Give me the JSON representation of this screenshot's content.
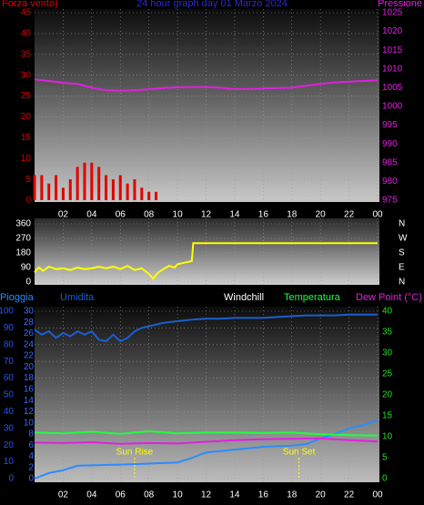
{
  "chart_data": [
    {
      "type": "combo",
      "title": "24 hour graph day  01 Marzo 2024",
      "title_color": "#2a2ad0",
      "ylabel": "Forza vento)",
      "y2label": "Pressione",
      "ycolor": "#e00000",
      "y2color": "#e020e0",
      "xlim": [
        0,
        24
      ],
      "xticks": [
        {
          "value": 2,
          "label": "02"
        },
        {
          "value": 4,
          "label": "04"
        },
        {
          "value": 6,
          "label": "06"
        },
        {
          "value": 8,
          "label": "08"
        },
        10,
        12,
        14,
        16,
        18,
        20,
        22,
        {
          "value": 24,
          "label": "00"
        }
      ],
      "ylim": [
        0,
        45
      ],
      "yticks": [
        0,
        5,
        10,
        15,
        20,
        25,
        30,
        35,
        40,
        45
      ],
      "y2lim": [
        975,
        1025
      ],
      "y2ticks": [
        975,
        980,
        985,
        990,
        995,
        1000,
        1005,
        1010,
        1015,
        1020,
        1025
      ],
      "grid": true,
      "series": [
        {
          "kind": "bar",
          "color": "#e00000",
          "x": [
            0,
            0.5,
            1,
            1.5,
            2,
            2.5,
            3,
            3.5,
            4,
            4.5,
            5,
            5.5,
            6,
            6.5,
            7,
            7.5,
            8,
            8.5,
            9
          ],
          "values": [
            6,
            6,
            4,
            6,
            3,
            5,
            8,
            9,
            9,
            8,
            6,
            5,
            6,
            4,
            5,
            3,
            2,
            2,
            0
          ]
        },
        {
          "kind": "line",
          "axis": "y2",
          "color": "#e020e0",
          "x": [
            0,
            1,
            2,
            3,
            4,
            5,
            6,
            7,
            8,
            9,
            10,
            11,
            12,
            13,
            14,
            15,
            16,
            17,
            18,
            19,
            20,
            21,
            22,
            23,
            24
          ],
          "values": [
            1007.2,
            1006.8,
            1006.3,
            1006,
            1005,
            1004.3,
            1004.2,
            1004.3,
            1004.6,
            1004.9,
            1005.1,
            1005.2,
            1005.2,
            1005,
            1004.6,
            1004.6,
            1004.8,
            1004.9,
            1005,
            1005.5,
            1006,
            1006.4,
            1006.6,
            1006.8,
            1007
          ]
        }
      ]
    },
    {
      "type": "line",
      "ycolor": "#ffffff",
      "y2color": "#ffffff",
      "xlim": [
        0,
        24
      ],
      "ylim": [
        0,
        360
      ],
      "yticks": [
        0,
        90,
        180,
        270,
        360
      ],
      "y2lim": [
        0,
        360
      ],
      "y2ticks": [
        {
          "value": 0,
          "label": "N"
        },
        {
          "value": 90,
          "label": "E"
        },
        {
          "value": 180,
          "label": "S"
        },
        {
          "value": 270,
          "label": "W"
        },
        {
          "value": 360,
          "label": "N"
        }
      ],
      "grid": true,
      "series": [
        {
          "kind": "line",
          "color": "#ffff00",
          "x": [
            0,
            0.3,
            0.6,
            1,
            1.5,
            2,
            2.5,
            3,
            3.5,
            4,
            4.5,
            5,
            5.5,
            6,
            6.5,
            7,
            7.5,
            8,
            8.3,
            8.6,
            9,
            9.4,
            9.8,
            10,
            10.5,
            11,
            11.1,
            24
          ],
          "values": [
            60,
            90,
            70,
            95,
            80,
            85,
            75,
            90,
            80,
            85,
            95,
            85,
            95,
            80,
            100,
            75,
            85,
            50,
            20,
            55,
            80,
            100,
            90,
            110,
            120,
            130,
            240,
            240
          ]
        }
      ]
    },
    {
      "type": "line",
      "labels": [
        "Windchill"
      ],
      "ycolor": "#2255ff",
      "y3color": "#3a6cff",
      "y2color": "#20e020",
      "xlim": [
        0,
        24
      ],
      "xticks": [
        {
          "value": 2,
          "label": "02"
        },
        {
          "value": 4,
          "label": "04"
        },
        {
          "value": 6,
          "label": "06"
        },
        {
          "value": 8,
          "label": "08"
        },
        10,
        12,
        14,
        16,
        18,
        20,
        22,
        {
          "value": 24,
          "label": "00"
        }
      ],
      "ylim": [
        0,
        100
      ],
      "yticks": [
        0,
        10,
        20,
        30,
        40,
        50,
        60,
        70,
        80,
        90,
        100
      ],
      "y3lim": [
        0,
        30
      ],
      "y3ticks": [
        0,
        2,
        4,
        6,
        8,
        10,
        12,
        14,
        16,
        18,
        20,
        22,
        24,
        26,
        28,
        30
      ],
      "y2lim": [
        0,
        40
      ],
      "y2ticks": [
        0,
        5,
        10,
        15,
        20,
        25,
        30,
        35,
        40
      ],
      "grid": true,
      "annotations": [
        {
          "text": "Sun Rise",
          "x": 7
        },
        {
          "text": "Sun Set",
          "x": 18.5
        }
      ],
      "series": [
        {
          "name": "Pioggia",
          "kind": "line",
          "axis": "y3",
          "color": "#2a8cff",
          "x": [
            0,
            1,
            2,
            3,
            7,
            10,
            11,
            12,
            14,
            16,
            18,
            19,
            20,
            21,
            22,
            23,
            24
          ],
          "values": [
            0,
            1,
            1.5,
            2.3,
            2.6,
            2.9,
            3.7,
            4.7,
            5.2,
            5.7,
            5.9,
            6.2,
            7.2,
            8,
            9,
            9.6,
            10.4
          ]
        },
        {
          "name": "Umidita",
          "kind": "line",
          "color": "#1a5fd0",
          "x": [
            0,
            0.5,
            1,
            1.5,
            2,
            2.5,
            3,
            3.5,
            4,
            4.5,
            5,
            5.5,
            6,
            6.5,
            7,
            7.5,
            8,
            9,
            10,
            11,
            12,
            13,
            14,
            15,
            16,
            17,
            18,
            19,
            20,
            21,
            22,
            23,
            24
          ],
          "values": [
            89,
            86,
            88,
            84,
            87,
            85,
            88,
            86,
            88,
            83,
            82,
            86,
            82,
            84,
            88,
            90,
            91,
            93,
            94,
            95,
            95.5,
            95.5,
            96,
            96,
            96,
            96.5,
            97,
            97.5,
            97.5,
            97.5,
            98,
            98,
            98
          ]
        },
        {
          "name": "Temperatura",
          "kind": "line",
          "axis": "y2",
          "color": "#20ff40",
          "x": [
            0,
            2,
            4,
            6,
            8,
            10,
            12,
            14,
            16,
            18,
            20,
            22,
            24
          ],
          "values": [
            11,
            10.8,
            11.2,
            10.7,
            11.3,
            10.8,
            11,
            11,
            10.9,
            11,
            10.6,
            10.4,
            10.3
          ]
        },
        {
          "name": "Dew Point (°C)",
          "kind": "line",
          "axis": "y2",
          "color": "#e020e0",
          "x": [
            0,
            2,
            4,
            6,
            8,
            10,
            12,
            14,
            16,
            18,
            20,
            22,
            24
          ],
          "values": [
            8.6,
            8.5,
            8.7,
            8.3,
            8.5,
            8.4,
            8.8,
            9.2,
            9.4,
            9.5,
            9.6,
            9.2,
            8.9
          ]
        }
      ]
    }
  ]
}
